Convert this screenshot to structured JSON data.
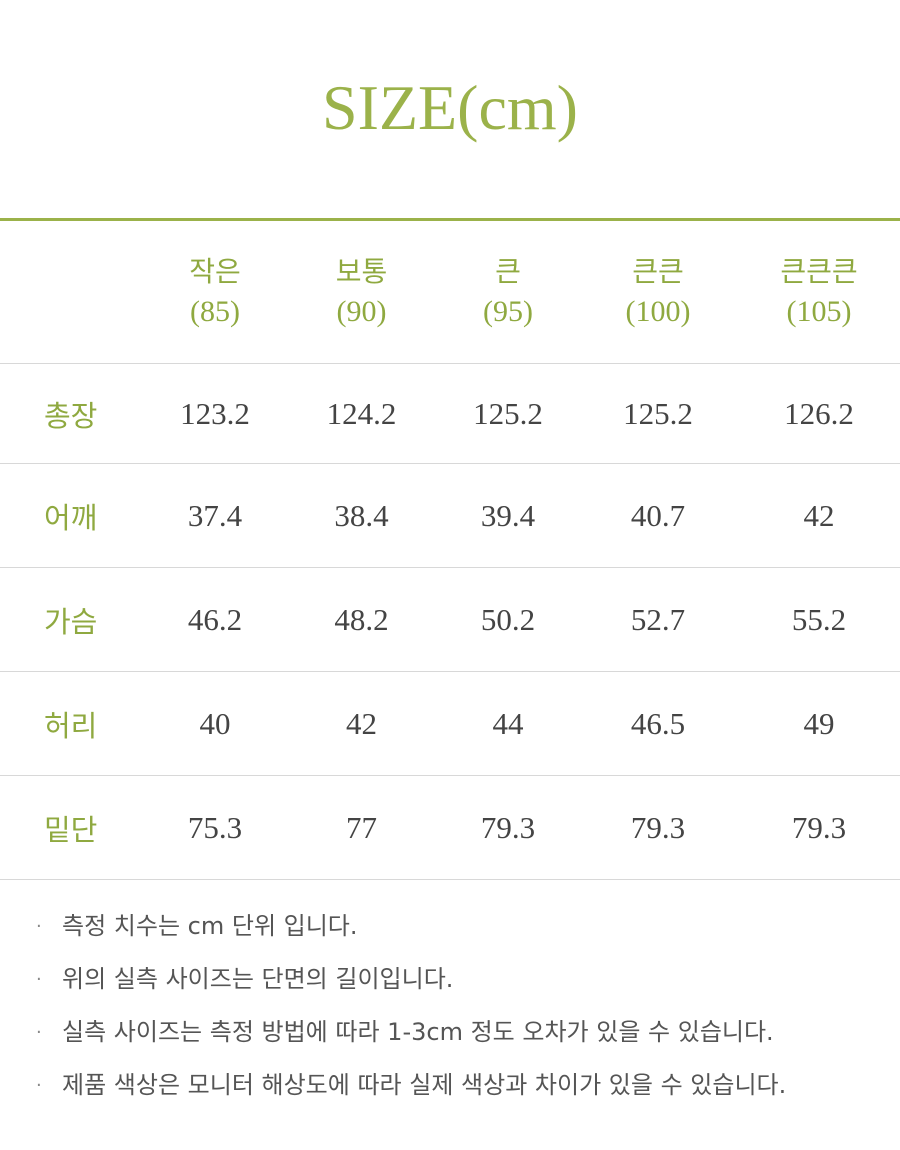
{
  "title": "SIZE(cm)",
  "table": {
    "columns": [
      {
        "name": "작은",
        "num": "(85)"
      },
      {
        "name": "보통",
        "num": "(90)"
      },
      {
        "name": "큰",
        "num": "(95)"
      },
      {
        "name": "큰큰",
        "num": "(100)"
      },
      {
        "name": "큰큰큰",
        "num": "(105)"
      }
    ],
    "rows": [
      {
        "label": "총장",
        "values": [
          "123.2",
          "124.2",
          "125.2",
          "125.2",
          "126.2"
        ]
      },
      {
        "label": "어깨",
        "values": [
          "37.4",
          "38.4",
          "39.4",
          "40.7",
          "42"
        ]
      },
      {
        "label": "가슴",
        "values": [
          "46.2",
          "48.2",
          "50.2",
          "52.7",
          "55.2"
        ]
      },
      {
        "label": "허리",
        "values": [
          "40",
          "42",
          "44",
          "46.5",
          "49"
        ]
      },
      {
        "label": "밑단",
        "values": [
          "75.3",
          "77",
          "79.3",
          "79.3",
          "79.3"
        ]
      }
    ]
  },
  "notes": [
    "측정 치수는 cm 단위 입니다.",
    "위의 실측 사이즈는 단면의 길이입니다.",
    "실측 사이즈는 측정 방법에 따라 1-3cm 정도 오차가 있을 수 있습니다.",
    "제품 색상은 모니터 해상도에 따라 실제 색상과 차이가 있을 수 있습니다."
  ],
  "bullet": "·",
  "colors": {
    "accent": "#9bb24a",
    "text": "#444444",
    "rule": "#d8d8d8"
  }
}
